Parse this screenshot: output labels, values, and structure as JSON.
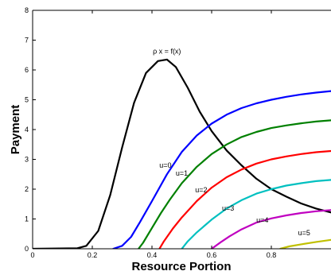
{
  "chart_data": {
    "type": "line",
    "title": "",
    "xlabel": "Resource Portion",
    "ylabel": "Payment",
    "xlim": [
      0,
      1
    ],
    "ylim": [
      0,
      8
    ],
    "xticks": [
      0,
      0.2,
      0.4,
      0.6,
      0.8
    ],
    "xtick_labels": [
      "0",
      "0.2",
      "0.4",
      "0.6",
      "0.8"
    ],
    "yticks": [
      0,
      1,
      2,
      3,
      4,
      5,
      6,
      7,
      8
    ],
    "ytick_labels": [
      "0",
      "1",
      "2",
      "3",
      "4",
      "5",
      "6",
      "7",
      "8"
    ],
    "grid": false,
    "annotations": [
      {
        "text": "ρ x = f(x)",
        "x": 0.45,
        "y": 6.55
      },
      {
        "text": "u=0",
        "x": 0.445,
        "y": 2.72
      },
      {
        "text": "u=1",
        "x": 0.5,
        "y": 2.45
      },
      {
        "text": "u=2",
        "x": 0.565,
        "y": 1.9
      },
      {
        "text": "u=3",
        "x": 0.655,
        "y": 1.28
      },
      {
        "text": "u=4",
        "x": 0.77,
        "y": 0.88
      },
      {
        "text": "u=5",
        "x": 0.91,
        "y": 0.45
      }
    ],
    "series": [
      {
        "color": "#000000",
        "x": [
          0,
          0.15,
          0.18,
          0.22,
          0.26,
          0.3,
          0.34,
          0.38,
          0.42,
          0.45,
          0.48,
          0.52,
          0.56,
          0.6,
          0.65,
          0.7,
          0.75,
          0.8,
          0.85,
          0.9,
          0.95,
          1.0
        ],
        "y": [
          0,
          0.02,
          0.1,
          0.6,
          1.8,
          3.4,
          4.9,
          5.9,
          6.3,
          6.35,
          6.1,
          5.4,
          4.6,
          3.95,
          3.3,
          2.8,
          2.35,
          2.0,
          1.75,
          1.52,
          1.35,
          1.22
        ]
      },
      {
        "color": "#0000ff",
        "x": [
          0.27,
          0.3,
          0.33,
          0.36,
          0.4,
          0.45,
          0.5,
          0.55,
          0.6,
          0.65,
          0.7,
          0.75,
          0.8,
          0.85,
          0.9,
          0.95,
          1.0
        ],
        "y": [
          0,
          0.1,
          0.4,
          0.9,
          1.6,
          2.5,
          3.25,
          3.8,
          4.2,
          4.5,
          4.72,
          4.88,
          5.0,
          5.1,
          5.18,
          5.24,
          5.29
        ]
      },
      {
        "color": "#008000",
        "x": [
          0.355,
          0.37,
          0.4,
          0.43,
          0.46,
          0.5,
          0.55,
          0.6,
          0.65,
          0.7,
          0.75,
          0.8,
          0.85,
          0.9,
          0.95,
          1.0
        ],
        "y": [
          0,
          0.2,
          0.7,
          1.2,
          1.65,
          2.2,
          2.75,
          3.18,
          3.5,
          3.75,
          3.92,
          4.05,
          4.14,
          4.21,
          4.27,
          4.31
        ]
      },
      {
        "color": "#ff0000",
        "x": [
          0.425,
          0.44,
          0.47,
          0.5,
          0.55,
          0.6,
          0.65,
          0.7,
          0.75,
          0.8,
          0.85,
          0.9,
          0.95,
          1.0
        ],
        "y": [
          0,
          0.25,
          0.68,
          1.05,
          1.6,
          2.05,
          2.4,
          2.66,
          2.86,
          3.0,
          3.1,
          3.18,
          3.24,
          3.28
        ]
      },
      {
        "color": "#00c0c0",
        "x": [
          0.5,
          0.52,
          0.55,
          0.6,
          0.65,
          0.7,
          0.75,
          0.8,
          0.85,
          0.9,
          0.95,
          1.0
        ],
        "y": [
          0,
          0.25,
          0.55,
          0.98,
          1.35,
          1.63,
          1.85,
          2.0,
          2.12,
          2.2,
          2.27,
          2.31
        ]
      },
      {
        "color": "#c000c0",
        "x": [
          0.6,
          0.63,
          0.66,
          0.7,
          0.75,
          0.8,
          0.85,
          0.9,
          0.95,
          1.0
        ],
        "y": [
          0,
          0.22,
          0.42,
          0.65,
          0.88,
          1.02,
          1.12,
          1.2,
          1.26,
          1.3
        ]
      },
      {
        "color": "#c0c000",
        "x": [
          0.83,
          0.86,
          0.9,
          0.95,
          1.0
        ],
        "y": [
          0,
          0.08,
          0.15,
          0.23,
          0.3
        ]
      }
    ]
  }
}
